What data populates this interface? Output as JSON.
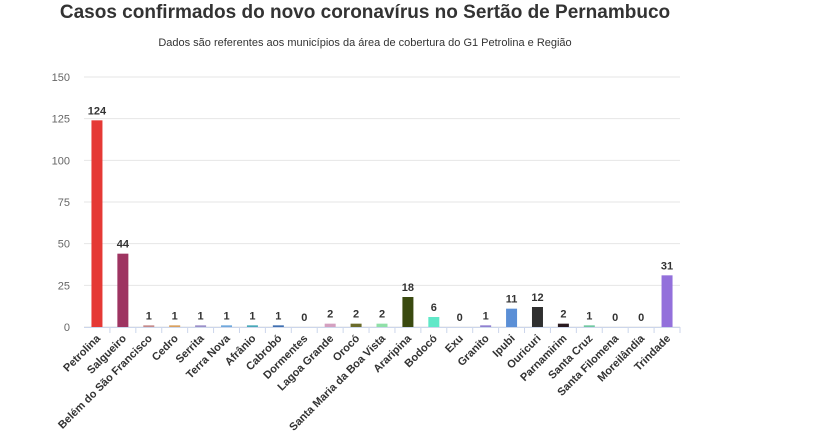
{
  "chart_data": {
    "type": "bar",
    "title": "Casos confirmados do novo coronavírus no Sertão de Pernambuco",
    "subtitle": "Dados são referentes aos municípios da área de cobertura do G1 Petrolina e Região",
    "xlabel": "",
    "ylabel": "",
    "ylim": [
      0,
      150
    ],
    "yticks": [
      0,
      25,
      50,
      75,
      100,
      125,
      150
    ],
    "grid": true,
    "legend": "none",
    "categories": [
      "Petrolina",
      "Salgueiro",
      "Belém do São Francisco",
      "Cedro",
      "Serrita",
      "Terra Nova",
      "Afrânio",
      "Cabrobó",
      "Dormentes",
      "Lagoa Grande",
      "Orocó",
      "Santa Maria da Boa Vista",
      "Araripina",
      "Bodocó",
      "Exu",
      "Granito",
      "Ipubi",
      "Ouricuri",
      "Parnamirim",
      "Santa Cruz",
      "Santa Filomena",
      "Moreilândia",
      "Trindade"
    ],
    "values": [
      124,
      44,
      1,
      1,
      1,
      1,
      1,
      1,
      0,
      2,
      2,
      2,
      18,
      6,
      0,
      1,
      11,
      12,
      2,
      1,
      0,
      0,
      31
    ],
    "colors": [
      "#e53935",
      "#9e3461",
      "#c58a8a",
      "#d9a05e",
      "#9b8fc8",
      "#6fa8dc",
      "#48a8b8",
      "#3f6fb0",
      "#c8a0a0",
      "#d4a0c0",
      "#6b6b2a",
      "#90e0a8",
      "#3a4a10",
      "#60e8c8",
      "#d09090",
      "#9080d0",
      "#5b8fd6",
      "#2f2f2f",
      "#2a1a20",
      "#70c8a0",
      "#a0a0a0",
      "#c0c0c0",
      "#9370db"
    ]
  }
}
